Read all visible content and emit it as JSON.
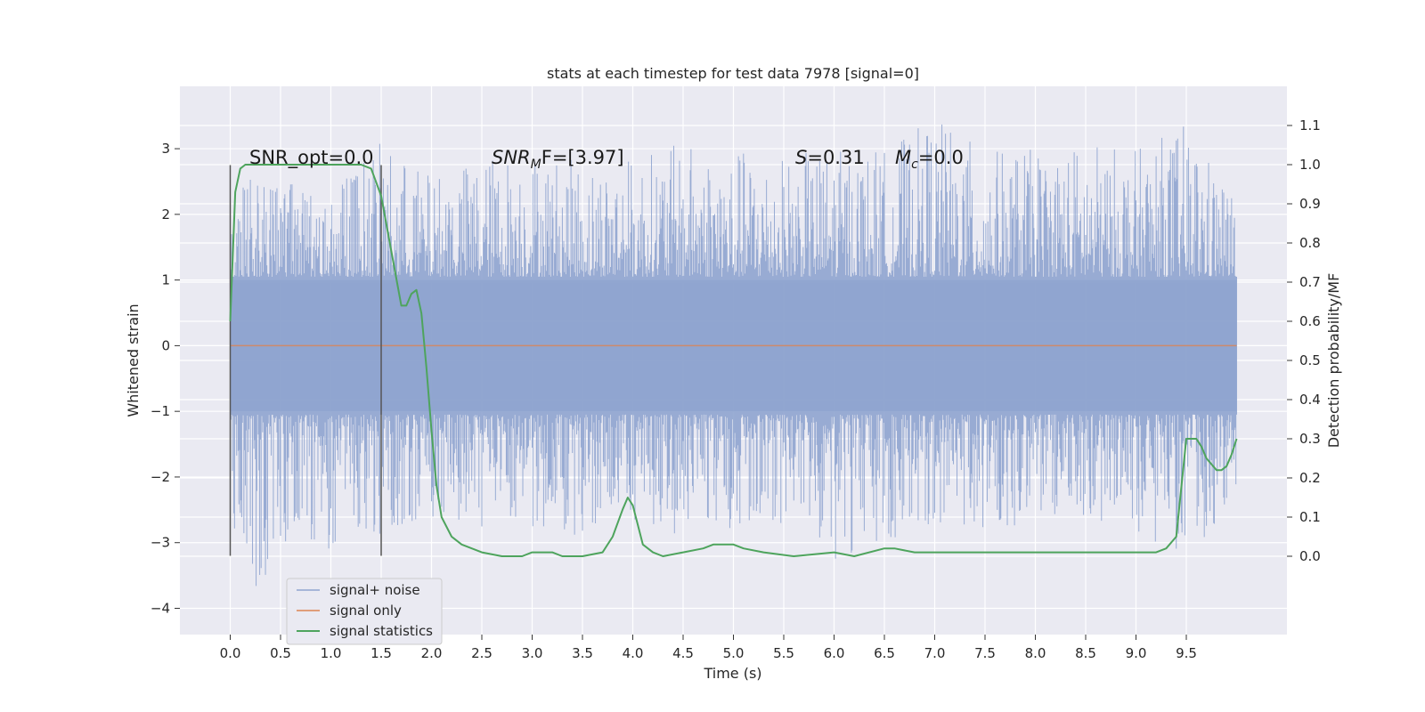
{
  "chart_data": {
    "type": "line",
    "title": "stats at each timestep for test data 7978 [signal=0]",
    "xlabel": "Time (s)",
    "ylabel": "Whitened strain",
    "y2label": "Detection probability/MF",
    "xlim": [
      -0.5,
      10.5
    ],
    "ylim": [
      -4.4,
      3.95
    ],
    "y2lim": [
      -0.2,
      1.2
    ],
    "xticks": [
      "0.0",
      "0.5",
      "1.0",
      "1.5",
      "2.0",
      "2.5",
      "3.0",
      "3.5",
      "4.0",
      "4.5",
      "5.0",
      "5.5",
      "6.0",
      "6.5",
      "7.0",
      "7.5",
      "8.0",
      "8.5",
      "9.0",
      "9.5"
    ],
    "yticks": [
      "−4",
      "−3",
      "−2",
      "−1",
      "0",
      "1",
      "2",
      "3"
    ],
    "y2ticks": [
      "0.0",
      "0.1",
      "0.2",
      "0.3",
      "0.4",
      "0.5",
      "0.6",
      "0.7",
      "0.8",
      "0.9",
      "1.0",
      "1.1"
    ],
    "grid": true,
    "legend_position": "lower-left",
    "legend": [
      "signal+ noise",
      "signal only",
      "signal statistics"
    ],
    "colors": {
      "noise": "#8fa4cf",
      "signal": "#dd8452",
      "stats": "#4ea45d",
      "background": "#eaeaf2",
      "window": "#555555"
    },
    "annotations": {
      "snr_opt": "SNR_opt=0.0",
      "snr_mf_prefix": "SNR",
      "snr_mf_sub": "M",
      "snr_mf_suffix": "F=[3.97]",
      "s_label": "S",
      "s_value": "=0.31",
      "mc_label": "M",
      "mc_sub": "c",
      "mc_value": "=0.0"
    },
    "window_lines": [
      0.0,
      1.5
    ],
    "series": [
      {
        "name": "signal+ noise",
        "axis": "left",
        "x_range": [
          0.0,
          10.0
        ],
        "envelope": {
          "t": [
            0.0,
            0.1,
            0.2,
            0.5,
            1.0,
            1.5,
            2.0,
            2.5,
            3.0,
            3.5,
            4.0,
            4.5,
            5.0,
            5.5,
            6.0,
            6.5,
            7.0,
            7.5,
            8.0,
            8.5,
            9.0,
            9.5,
            10.0
          ],
          "upper": [
            2.0,
            2.5,
            2.6,
            2.5,
            2.4,
            3.1,
            2.6,
            2.9,
            3.0,
            2.8,
            2.9,
            3.1,
            3.0,
            2.9,
            3.0,
            3.0,
            3.5,
            3.0,
            3.0,
            3.1,
            3.0,
            3.4,
            2.3
          ],
          "lower": [
            -2.3,
            -3.5,
            -4.0,
            -3.0,
            -3.1,
            -2.9,
            -2.7,
            -2.8,
            -2.9,
            -3.0,
            -2.8,
            -2.9,
            -2.8,
            -2.7,
            -3.3,
            -3.0,
            -2.7,
            -2.8,
            -2.8,
            -2.7,
            -2.9,
            -3.2,
            -2.4
          ]
        }
      },
      {
        "name": "signal only",
        "axis": "left",
        "x": [
          0.0,
          10.0
        ],
        "y": [
          0.0,
          0.0
        ]
      },
      {
        "name": "signal statistics",
        "axis": "right",
        "x": [
          0.0,
          0.05,
          0.1,
          0.15,
          0.25,
          0.4,
          0.6,
          0.8,
          1.0,
          1.2,
          1.3,
          1.4,
          1.5,
          1.6,
          1.7,
          1.75,
          1.8,
          1.85,
          1.9,
          1.95,
          2.0,
          2.05,
          2.1,
          2.2,
          2.3,
          2.4,
          2.5,
          2.7,
          2.9,
          3.0,
          3.2,
          3.3,
          3.5,
          3.7,
          3.8,
          3.9,
          3.95,
          4.0,
          4.05,
          4.1,
          4.2,
          4.3,
          4.5,
          4.7,
          4.8,
          5.0,
          5.1,
          5.3,
          5.6,
          6.0,
          6.2,
          6.5,
          6.6,
          6.8,
          7.0,
          7.3,
          7.7,
          8.0,
          8.4,
          8.6,
          9.0,
          9.2,
          9.3,
          9.4,
          9.5,
          9.6,
          9.65,
          9.7,
          9.8,
          9.85,
          9.9,
          9.95,
          10.0
        ],
        "y": [
          0.6,
          0.93,
          0.99,
          1.0,
          1.0,
          1.0,
          1.0,
          1.0,
          1.0,
          1.0,
          1.0,
          0.99,
          0.92,
          0.78,
          0.64,
          0.64,
          0.67,
          0.68,
          0.62,
          0.48,
          0.32,
          0.18,
          0.1,
          0.05,
          0.03,
          0.02,
          0.01,
          0.0,
          0.0,
          0.01,
          0.01,
          0.0,
          0.0,
          0.01,
          0.05,
          0.12,
          0.15,
          0.13,
          0.08,
          0.03,
          0.01,
          0.0,
          0.01,
          0.02,
          0.03,
          0.03,
          0.02,
          0.01,
          0.0,
          0.01,
          0.0,
          0.02,
          0.02,
          0.01,
          0.01,
          0.01,
          0.01,
          0.01,
          0.01,
          0.01,
          0.01,
          0.01,
          0.02,
          0.05,
          0.3,
          0.3,
          0.28,
          0.25,
          0.22,
          0.22,
          0.23,
          0.26,
          0.3
        ]
      }
    ]
  }
}
